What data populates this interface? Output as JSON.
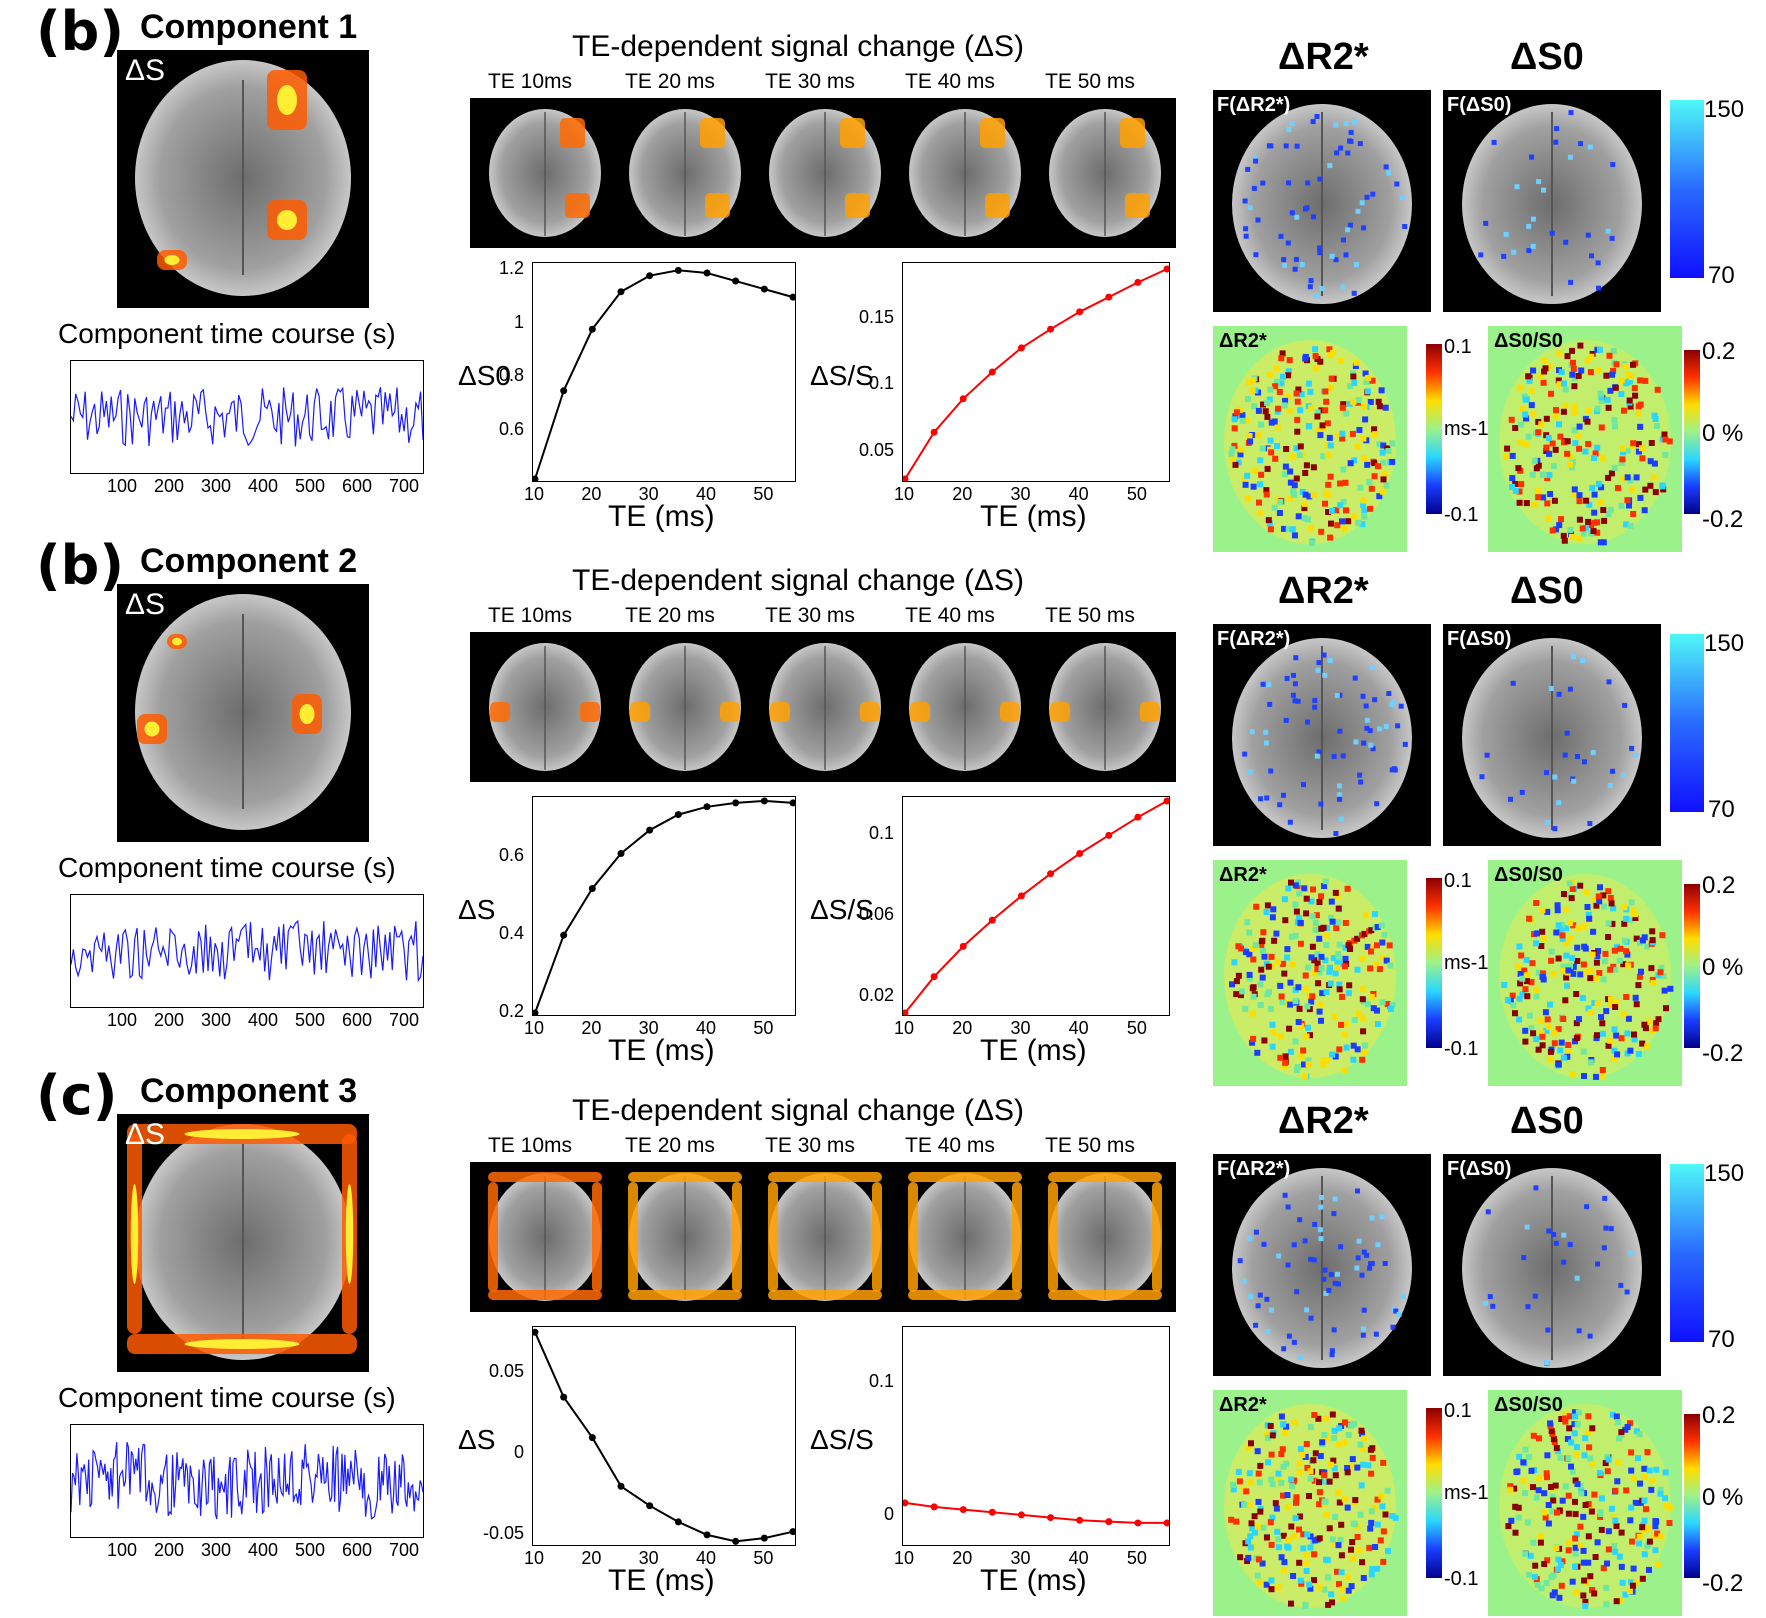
{
  "rows": [
    {
      "panel_label": "(b)",
      "component_title": "Component 1",
      "map_label": "ΔS",
      "time_course_title": "Component time course (s)",
      "tc_ticks": [
        "100",
        "200",
        "300",
        "400",
        "500",
        "600",
        "700"
      ],
      "te_title": "TE-dependent signal change (ΔS)",
      "te_labels": [
        "TE 10ms",
        "TE 20 ms",
        "TE 30 ms",
        "TE 40 ms",
        "TE 50 ms"
      ],
      "plot1_ylabel": "ΔS0",
      "plot1_yticks": [
        "1.2",
        "1",
        "0.8",
        "0.6"
      ],
      "plot1_xticks": [
        "10",
        "20",
        "30",
        "40",
        "50"
      ],
      "plot1_xlabel": "TE (ms)",
      "plot2_ylabel": "ΔS/S",
      "plot2_yticks": [
        "0.15",
        "0.1",
        "0.05"
      ],
      "plot2_xticks": [
        "10",
        "20",
        "30",
        "40",
        "50"
      ],
      "plot2_xlabel": "TE (ms)",
      "head_r2": "ΔR2*",
      "head_s0": "ΔS0",
      "f_r2": "F(ΔR2*)",
      "f_s0": "F(ΔS0)",
      "cb_top": "150",
      "cb_bottom": "70",
      "r2_label": "ΔR2*",
      "r2_cb": [
        "0.1",
        "ms-1",
        "-0.1"
      ],
      "s0_label": "ΔS0/S0",
      "s0_cb": [
        "0.2",
        "0 %",
        "-0.2"
      ]
    },
    {
      "panel_label": "(b)",
      "component_title": "Component 2",
      "map_label": "ΔS",
      "time_course_title": "Component time course (s)",
      "tc_ticks": [
        "100",
        "200",
        "300",
        "400",
        "500",
        "600",
        "700"
      ],
      "te_title": "TE-dependent signal change (ΔS)",
      "te_labels": [
        "TE 10ms",
        "TE 20 ms",
        "TE 30 ms",
        "TE 40 ms",
        "TE 50 ms"
      ],
      "plot1_ylabel": "ΔS",
      "plot1_yticks": [
        "0.6",
        "0.4",
        "0.2"
      ],
      "plot1_xticks": [
        "10",
        "20",
        "30",
        "40",
        "50"
      ],
      "plot1_xlabel": "TE (ms)",
      "plot2_ylabel": "ΔS/S",
      "plot2_yticks": [
        "0.1",
        "0.06",
        "0.02"
      ],
      "plot2_xticks": [
        "10",
        "20",
        "30",
        "40",
        "50"
      ],
      "plot2_xlabel": "TE (ms)",
      "head_r2": "ΔR2*",
      "head_s0": "ΔS0",
      "f_r2": "F(ΔR2*)",
      "f_s0": "F(ΔS0)",
      "cb_top": "150",
      "cb_bottom": "70",
      "r2_label": "ΔR2*",
      "r2_cb": [
        "0.1",
        "ms-1",
        "-0.1"
      ],
      "s0_label": "ΔS0/S0",
      "s0_cb": [
        "0.2",
        "0 %",
        "-0.2"
      ]
    },
    {
      "panel_label": "(c)",
      "component_title": "Component 3",
      "map_label": "ΔS",
      "time_course_title": "Component time course (s)",
      "tc_ticks": [
        "100",
        "200",
        "300",
        "400",
        "500",
        "600",
        "700"
      ],
      "te_title": "TE-dependent signal change (ΔS)",
      "te_labels": [
        "TE 10ms",
        "TE 20 ms",
        "TE 30 ms",
        "TE 40 ms",
        "TE 50 ms"
      ],
      "plot1_ylabel": "ΔS",
      "plot1_yticks": [
        "0.05",
        "0",
        "-0.05"
      ],
      "plot1_xticks": [
        "10",
        "20",
        "30",
        "40",
        "50"
      ],
      "plot1_xlabel": "TE (ms)",
      "plot2_ylabel": "ΔS/S",
      "plot2_yticks": [
        "0.1",
        "0"
      ],
      "plot2_xticks": [
        "10",
        "20",
        "30",
        "40",
        "50"
      ],
      "plot2_xlabel": "TE (ms)",
      "head_r2": "ΔR2*",
      "head_s0": "ΔS0",
      "f_r2": "F(ΔR2*)",
      "f_s0": "F(ΔS0)",
      "cb_top": "150",
      "cb_bottom": "70",
      "r2_label": "ΔR2*",
      "r2_cb": [
        "0.1",
        "ms-1",
        "-0.1"
      ],
      "s0_label": "ΔS0/S0",
      "s0_cb": [
        "0.2",
        "0 %",
        "-0.2"
      ]
    }
  ],
  "chart_data": [
    {
      "type": "line",
      "panel": "Component 1 ΔS0 vs TE",
      "x": [
        10,
        15,
        20,
        25,
        30,
        35,
        40,
        45,
        50,
        55
      ],
      "values": [
        0.42,
        0.75,
        0.98,
        1.12,
        1.18,
        1.2,
        1.19,
        1.16,
        1.13,
        1.1
      ],
      "xlabel": "TE (ms)",
      "ylabel": "ΔS0",
      "xlim": [
        10,
        55
      ],
      "ylim": [
        0.42,
        1.22
      ],
      "color": "#000000"
    },
    {
      "type": "line",
      "panel": "Component 1 ΔS/S vs TE",
      "x": [
        10,
        15,
        20,
        25,
        30,
        35,
        40,
        45,
        50,
        55
      ],
      "values": [
        0.03,
        0.065,
        0.09,
        0.11,
        0.128,
        0.142,
        0.155,
        0.166,
        0.177,
        0.187
      ],
      "xlabel": "TE (ms)",
      "ylabel": "ΔS/S",
      "xlim": [
        10,
        55
      ],
      "ylim": [
        0.03,
        0.19
      ],
      "color": "#ff0000"
    },
    {
      "type": "line",
      "panel": "Component 2 ΔS vs TE",
      "x": [
        10,
        15,
        20,
        25,
        30,
        35,
        40,
        45,
        50,
        55
      ],
      "values": [
        0.2,
        0.4,
        0.52,
        0.61,
        0.67,
        0.71,
        0.73,
        0.74,
        0.745,
        0.74
      ],
      "xlabel": "TE (ms)",
      "ylabel": "ΔS",
      "xlim": [
        10,
        55
      ],
      "ylim": [
        0.2,
        0.75
      ],
      "color": "#000000"
    },
    {
      "type": "line",
      "panel": "Component 2 ΔS/S vs TE",
      "x": [
        10,
        15,
        20,
        25,
        30,
        35,
        40,
        45,
        50,
        55
      ],
      "values": [
        0.012,
        0.03,
        0.045,
        0.058,
        0.07,
        0.081,
        0.091,
        0.1,
        0.109,
        0.117
      ],
      "xlabel": "TE (ms)",
      "ylabel": "ΔS/S",
      "xlim": [
        10,
        55
      ],
      "ylim": [
        0.012,
        0.118
      ],
      "color": "#ff0000"
    },
    {
      "type": "line",
      "panel": "Component 3 ΔS vs TE",
      "x": [
        10,
        15,
        20,
        25,
        30,
        35,
        40,
        45,
        50,
        55
      ],
      "values": [
        0.075,
        0.035,
        0.01,
        -0.02,
        -0.032,
        -0.042,
        -0.05,
        -0.054,
        -0.052,
        -0.048
      ],
      "xlabel": "TE (ms)",
      "ylabel": "ΔS",
      "xlim": [
        10,
        55
      ],
      "ylim": [
        -0.055,
        0.077
      ],
      "color": "#000000"
    },
    {
      "type": "line",
      "panel": "Component 3 ΔS/S vs TE",
      "x": [
        10,
        15,
        20,
        25,
        30,
        35,
        40,
        45,
        50,
        55
      ],
      "values": [
        0.01,
        0.007,
        0.005,
        0.003,
        0.001,
        -0.001,
        -0.003,
        -0.004,
        -0.005,
        -0.005
      ],
      "xlabel": "TE (ms)",
      "ylabel": "ΔS/S",
      "xlim": [
        10,
        55
      ],
      "ylim": [
        -0.02,
        0.14
      ],
      "color": "#ff0000"
    }
  ]
}
